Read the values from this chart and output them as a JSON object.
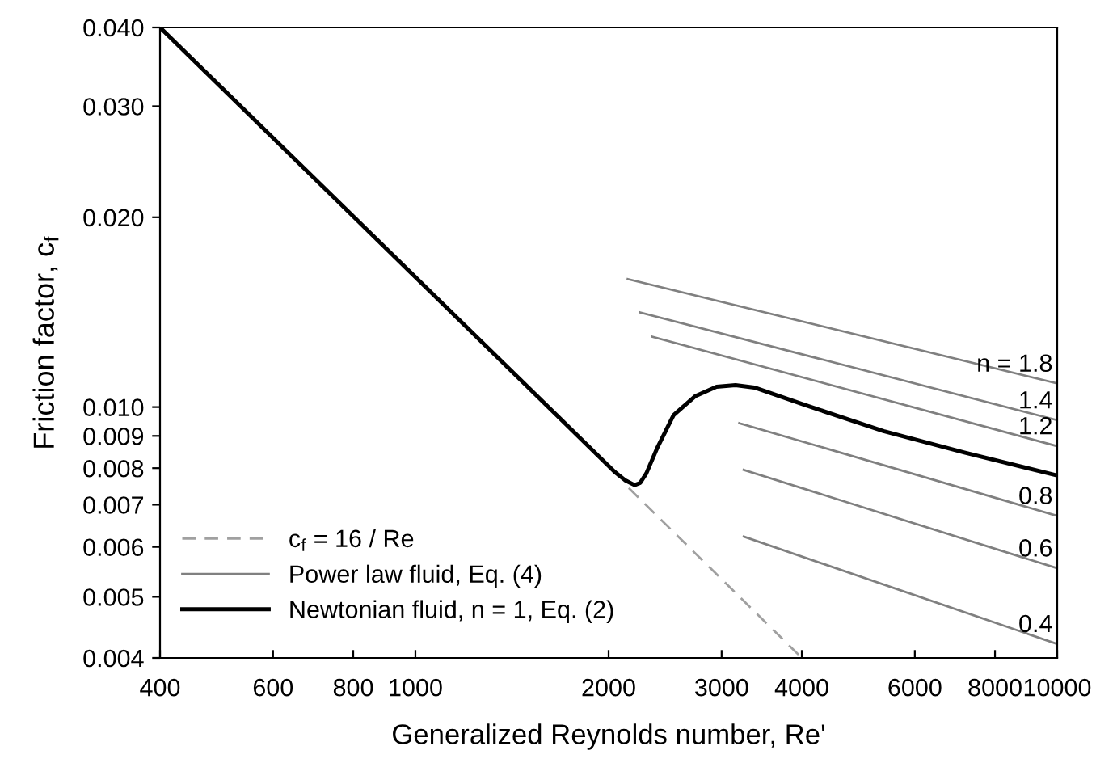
{
  "chart_data": {
    "type": "line",
    "xlabel": "Generalized Reynolds number, Re'",
    "ylabel": "Friction factor, c$_{f}$",
    "log": "xy",
    "grid": false,
    "legend": "bottom left",
    "marker": "none",
    "xlim": [
      400,
      10000
    ],
    "xticks": [
      400,
      600,
      800,
      1000,
      2000,
      3000,
      4000,
      6000,
      8000,
      10000
    ],
    "ylim": [
      0.004,
      0.04
    ],
    "yticks": [
      {
        "value": 0.004,
        "label": "0.004"
      },
      {
        "value": 0.005,
        "label": "0.005"
      },
      {
        "value": 0.006,
        "label": "0.006"
      },
      {
        "value": 0.007,
        "label": "0.007"
      },
      {
        "value": 0.008,
        "label": "0.008"
      },
      {
        "value": 0.009,
        "label": "0.009"
      },
      {
        "value": 0.01,
        "label": "0.010"
      },
      {
        "value": 0.02,
        "label": "0.020"
      },
      {
        "value": 0.03,
        "label": "0.030"
      },
      {
        "value": 0.04,
        "label": "0.040"
      }
    ],
    "series": [
      {
        "name": "c$_{f}$ = 16 / Re",
        "color": "#a0a0a0",
        "line_style": "dashed",
        "x": [
          2150,
          4000
        ],
        "values": [
          0.00744,
          0.004
        ]
      },
      {
        "name": "Power law fluid, Eq. (4)",
        "color": "#808080",
        "line_style": "solid",
        "x": [
          2142,
          10000
        ],
        "values": [
          0.01596,
          0.0109
        ]
      },
      {
        "color": "#808080",
        "line_style": "solid",
        "x": [
          2239,
          10000
        ],
        "values": [
          0.01413,
          0.00953
        ]
      },
      {
        "color": "#808080",
        "line_style": "solid",
        "x": [
          2337,
          10000
        ],
        "values": [
          0.01293,
          0.00867
        ]
      },
      {
        "color": "#808080",
        "line_style": "solid",
        "x": [
          3196,
          10000
        ],
        "values": [
          0.00943,
          0.00672
        ]
      },
      {
        "color": "#808080",
        "line_style": "solid",
        "x": [
          3247,
          10000
        ],
        "values": [
          0.00795,
          0.00555
        ]
      },
      {
        "color": "#808080",
        "line_style": "solid",
        "x": [
          3247,
          10000
        ],
        "values": [
          0.00623,
          0.00421
        ]
      },
      {
        "name": "Newtonian fluid, n = 1, Eq. (2)",
        "color": "#000000",
        "line_style": "solid",
        "x": [
          400,
          2042,
          2120,
          2195,
          2240,
          2290,
          2383,
          2525,
          2727,
          2945,
          3153,
          3374,
          4015,
          5364,
          7169,
          10000
        ],
        "values": [
          0.04,
          0.0079,
          0.00766,
          0.00752,
          0.00758,
          0.00785,
          0.00863,
          0.00971,
          0.0104,
          0.01077,
          0.01083,
          0.01074,
          0.0101,
          0.00916,
          0.00847,
          0.00779
        ]
      }
    ],
    "annotations": [
      "n = 1.8",
      "1.4",
      "1.2",
      "0.8",
      "0.6",
      "0.4"
    ]
  }
}
